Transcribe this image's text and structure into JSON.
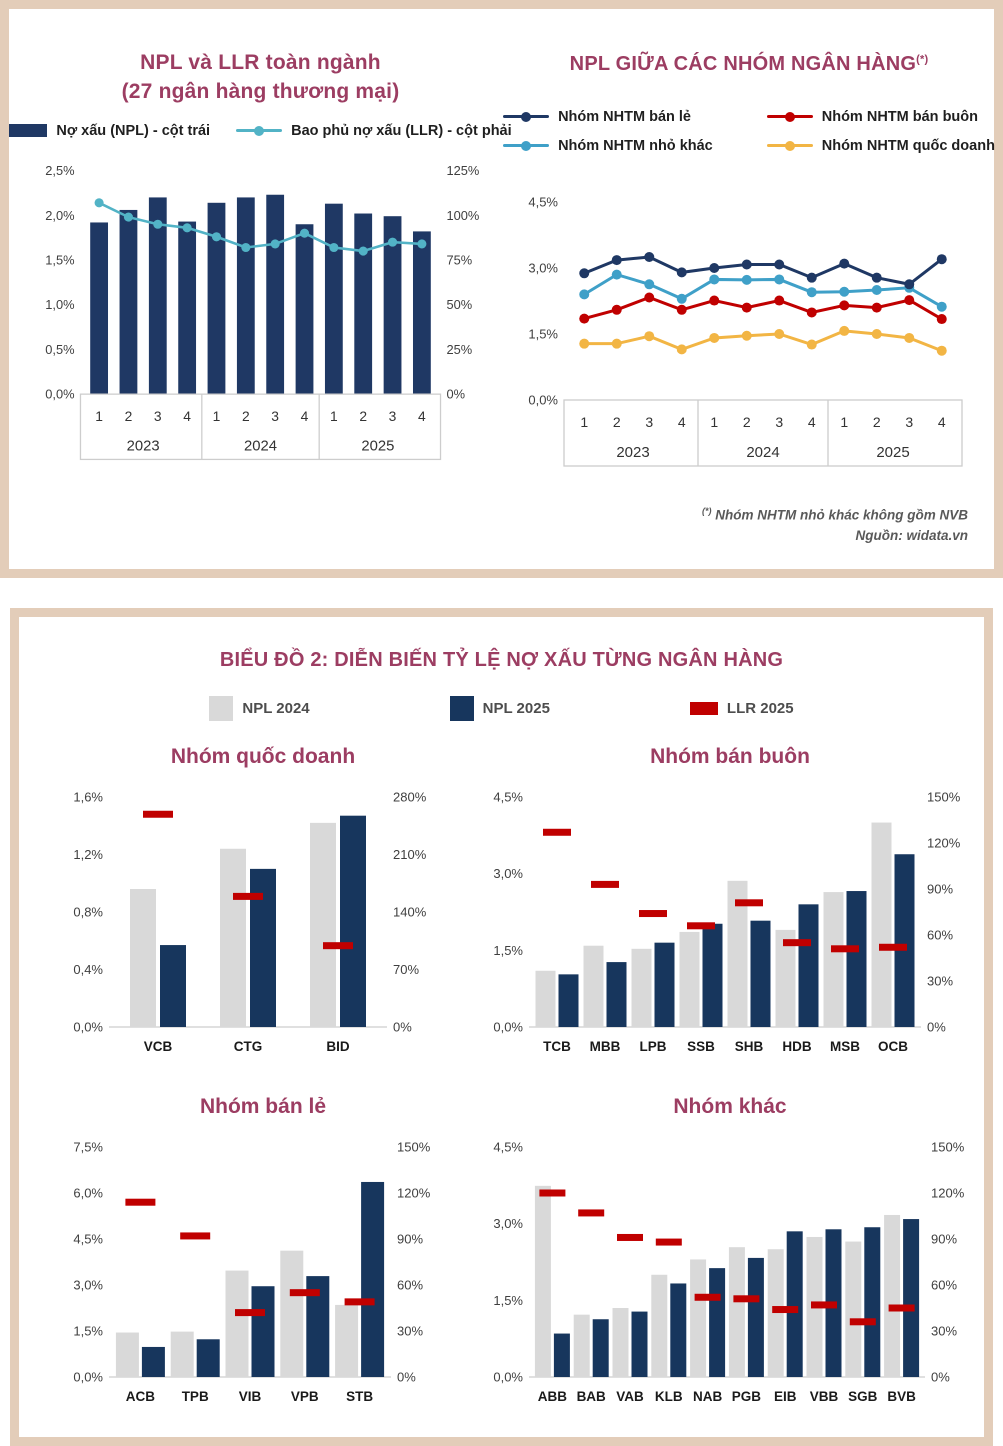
{
  "colors": {
    "maroon_title": "#9C3D62",
    "navy": "#1F3864",
    "navy_dark": "#17365D",
    "teal": "#52B3C6",
    "light_blue": "#3FA0C8",
    "red": "#C00000",
    "yellow": "#F2B544",
    "gray_bar": "#D9D9D9",
    "panel_border": "#E3CDB9",
    "axis_text": "#3F3F3F",
    "axis_line": "#CDCDCD"
  },
  "panel_top": {
    "chart_industry": {
      "title_line1": "NPL và LLR toàn ngành",
      "title_line2": "(27 ngân hàng thương mại)",
      "legend": [
        {
          "label": "Nợ xấu (NPL) - cột trái",
          "color": "#1F3864",
          "marker": "bar"
        },
        {
          "label": "Bao phủ nợ xấu (LLR) - cột phải",
          "color": "#52B3C6",
          "marker": "line"
        }
      ]
    },
    "chart_groups": {
      "title": "NPL GIỮA CÁC NHÓM NGÂN HÀNG",
      "title_sup": "(*)",
      "legend": [
        {
          "label": "Nhóm NHTM bán lẻ",
          "color": "#1F3864",
          "marker": "line"
        },
        {
          "label": "Nhóm NHTM bán buôn",
          "color": "#C00000",
          "marker": "line"
        },
        {
          "label": "Nhóm NHTM nhỏ khác",
          "color": "#3FA0C8",
          "marker": "line"
        },
        {
          "label": "Nhóm NHTM quốc doanh",
          "color": "#F2B544",
          "marker": "line"
        }
      ]
    },
    "footnote_marker": "(*)",
    "footnote_text": " Nhóm NHTM nhỏ khác không gồm NVB",
    "source": "Nguồn: widata.vn"
  },
  "panel_bottom": {
    "title": "BIỂU ĐỒ 2: DIỄN BIẾN TỶ LỆ NỢ XẤU TỪNG NGÂN HÀNG",
    "legend": [
      {
        "label": "NPL 2024",
        "color": "#D9D9D9",
        "marker": "vbar"
      },
      {
        "label": "NPL 2025",
        "color": "#17365D",
        "marker": "vbar"
      },
      {
        "label": "LLR 2025",
        "color": "#C00000",
        "marker": "dash"
      }
    ]
  },
  "chart_data": [
    {
      "id": "industry",
      "type": "combo",
      "title": "NPL và LLR toàn ngành (27 ngân hàng thương mại)",
      "x_groups": [
        {
          "year": "2023",
          "quarters": [
            "1",
            "2",
            "3",
            "4"
          ]
        },
        {
          "year": "2024",
          "quarters": [
            "1",
            "2",
            "3",
            "4"
          ]
        },
        {
          "year": "2025",
          "quarters": [
            "1",
            "2",
            "3",
            "4"
          ]
        }
      ],
      "bar_series": {
        "name": "Nợ xấu (NPL) - cột trái",
        "axis": "left",
        "color": "#1F3864",
        "values": [
          1.92,
          2.06,
          2.2,
          1.93,
          2.14,
          2.2,
          2.23,
          1.9,
          2.13,
          2.02,
          1.99,
          1.82
        ]
      },
      "line_series": {
        "name": "Bao phủ nợ xấu (LLR) - cột phải",
        "axis": "right",
        "color": "#52B3C6",
        "values": [
          107,
          99,
          95,
          93,
          88,
          82,
          84,
          90,
          82,
          80,
          85,
          84
        ]
      },
      "left_axis": {
        "max": 2.5,
        "ticks": [
          {
            "v": 0,
            "label": "0,0%"
          },
          {
            "v": 0.5,
            "label": "0,5%"
          },
          {
            "v": 1,
            "label": "1,0%"
          },
          {
            "v": 1.5,
            "label": "1,5%"
          },
          {
            "v": 2,
            "label": "2,0%"
          },
          {
            "v": 2.5,
            "label": "2,5%"
          }
        ]
      },
      "right_axis": {
        "max": 125,
        "ticks": [
          {
            "v": 0,
            "label": "0%"
          },
          {
            "v": 25,
            "label": "25%"
          },
          {
            "v": 50,
            "label": "50%"
          },
          {
            "v": 75,
            "label": "75%"
          },
          {
            "v": 100,
            "label": "100%"
          },
          {
            "v": 125,
            "label": "125%"
          }
        ]
      }
    },
    {
      "id": "groups",
      "type": "line",
      "title": "NPL GIỮA CÁC NHÓM NGÂN HÀNG (*)",
      "x_groups": [
        {
          "year": "2023",
          "quarters": [
            "1",
            "2",
            "3",
            "4"
          ]
        },
        {
          "year": "2024",
          "quarters": [
            "1",
            "2",
            "3",
            "4"
          ]
        },
        {
          "year": "2025",
          "quarters": [
            "1",
            "2",
            "3",
            "4"
          ]
        }
      ],
      "series": [
        {
          "name": "Nhóm NHTM bán lẻ",
          "color": "#1F3864",
          "values": [
            2.88,
            3.18,
            3.25,
            2.9,
            3.0,
            3.08,
            3.08,
            2.78,
            3.1,
            2.78,
            2.63,
            3.2
          ]
        },
        {
          "name": "Nhóm NHTM bán buôn",
          "color": "#C00000",
          "values": [
            1.85,
            2.05,
            2.33,
            2.05,
            2.26,
            2.1,
            2.26,
            1.99,
            2.15,
            2.1,
            2.27,
            1.84
          ]
        },
        {
          "name": "Nhóm NHTM nhỏ khác",
          "color": "#3FA0C8",
          "values": [
            2.4,
            2.85,
            2.63,
            2.3,
            2.74,
            2.73,
            2.74,
            2.45,
            2.46,
            2.5,
            2.55,
            2.12
          ]
        },
        {
          "name": "Nhóm NHTM quốc doanh",
          "color": "#F2B544",
          "values": [
            1.28,
            1.28,
            1.45,
            1.15,
            1.41,
            1.46,
            1.5,
            1.26,
            1.57,
            1.5,
            1.41,
            1.12
          ]
        }
      ],
      "left_axis": {
        "max": 4.5,
        "ticks": [
          {
            "v": 0,
            "label": "0,0%"
          },
          {
            "v": 1.5,
            "label": "1,5%"
          },
          {
            "v": 3,
            "label": "3,0%"
          },
          {
            "v": 4.5,
            "label": "4,5%"
          }
        ]
      }
    },
    {
      "id": "quoc-doanh",
      "type": "grouped-bar",
      "title": "Nhóm quốc doanh",
      "categories": [
        "VCB",
        "CTG",
        "BID"
      ],
      "series": [
        {
          "name": "NPL 2024",
          "axis": "left",
          "color": "#D9D9D9",
          "values": [
            0.96,
            1.24,
            1.42
          ]
        },
        {
          "name": "NPL 2025",
          "axis": "left",
          "color": "#17365D",
          "values": [
            0.57,
            1.1,
            1.47
          ]
        },
        {
          "name": "LLR 2025",
          "axis": "right",
          "color": "#C00000",
          "style": "dash",
          "values": [
            259,
            159,
            99
          ]
        }
      ],
      "left_axis": {
        "max": 1.6,
        "ticks": [
          {
            "v": 0,
            "label": "0,0%"
          },
          {
            "v": 0.4,
            "label": "0,4%"
          },
          {
            "v": 0.8,
            "label": "0,8%"
          },
          {
            "v": 1.2,
            "label": "1,2%"
          },
          {
            "v": 1.6,
            "label": "1,6%"
          }
        ]
      },
      "right_axis": {
        "max": 280,
        "ticks": [
          {
            "v": 0,
            "label": "0%"
          },
          {
            "v": 70,
            "label": "70%"
          },
          {
            "v": 140,
            "label": "140%"
          },
          {
            "v": 210,
            "label": "210%"
          },
          {
            "v": 280,
            "label": "280%"
          }
        ]
      }
    },
    {
      "id": "ban-buon",
      "type": "grouped-bar",
      "title": "Nhóm bán buôn",
      "categories": [
        "TCB",
        "MBB",
        "LPB",
        "SSB",
        "SHB",
        "HDB",
        "MSB",
        "OCB"
      ],
      "series": [
        {
          "name": "NPL 2024",
          "axis": "left",
          "color": "#D9D9D9",
          "values": [
            1.1,
            1.59,
            1.53,
            1.86,
            2.86,
            1.9,
            2.64,
            4.0
          ]
        },
        {
          "name": "NPL 2025",
          "axis": "left",
          "color": "#17365D",
          "values": [
            1.03,
            1.27,
            1.65,
            2.02,
            2.08,
            2.4,
            2.66,
            3.38
          ]
        },
        {
          "name": "LLR 2025",
          "axis": "right",
          "color": "#C00000",
          "style": "dash",
          "values": [
            127,
            93,
            74,
            66,
            81,
            55,
            51,
            52
          ]
        }
      ],
      "left_axis": {
        "max": 4.5,
        "ticks": [
          {
            "v": 0,
            "label": "0,0%"
          },
          {
            "v": 1.5,
            "label": "1,5%"
          },
          {
            "v": 3,
            "label": "3,0%"
          },
          {
            "v": 4.5,
            "label": "4,5%"
          }
        ]
      },
      "right_axis": {
        "max": 150,
        "ticks": [
          {
            "v": 0,
            "label": "0%"
          },
          {
            "v": 30,
            "label": "30%"
          },
          {
            "v": 60,
            "label": "60%"
          },
          {
            "v": 90,
            "label": "90%"
          },
          {
            "v": 120,
            "label": "120%"
          },
          {
            "v": 150,
            "label": "150%"
          }
        ]
      }
    },
    {
      "id": "ban-le",
      "type": "grouped-bar",
      "title": "Nhóm bán lẻ",
      "categories": [
        "ACB",
        "TPB",
        "VIB",
        "VPB",
        "STB"
      ],
      "series": [
        {
          "name": "NPL 2024",
          "axis": "left",
          "color": "#D9D9D9",
          "values": [
            1.45,
            1.48,
            3.47,
            4.12,
            2.35
          ]
        },
        {
          "name": "NPL 2025",
          "axis": "left",
          "color": "#17365D",
          "values": [
            0.98,
            1.23,
            2.96,
            3.29,
            6.36
          ]
        },
        {
          "name": "LLR 2025",
          "axis": "right",
          "color": "#C00000",
          "style": "dash",
          "values": [
            114,
            92,
            42,
            55,
            49
          ]
        }
      ],
      "left_axis": {
        "max": 7.5,
        "ticks": [
          {
            "v": 0,
            "label": "0,0%"
          },
          {
            "v": 1.5,
            "label": "1,5%"
          },
          {
            "v": 3,
            "label": "3,0%"
          },
          {
            "v": 4.5,
            "label": "4,5%"
          },
          {
            "v": 6,
            "label": "6,0%"
          },
          {
            "v": 7.5,
            "label": "7,5%"
          }
        ]
      },
      "right_axis": {
        "max": 150,
        "ticks": [
          {
            "v": 0,
            "label": "0%"
          },
          {
            "v": 30,
            "label": "30%"
          },
          {
            "v": 60,
            "label": "60%"
          },
          {
            "v": 90,
            "label": "90%"
          },
          {
            "v": 120,
            "label": "120%"
          },
          {
            "v": 150,
            "label": "150%"
          }
        ]
      }
    },
    {
      "id": "khac",
      "type": "grouped-bar",
      "title": "Nhóm khác",
      "categories": [
        "ABB",
        "BAB",
        "VAB",
        "KLB",
        "NAB",
        "PGB",
        "EIB",
        "VBB",
        "SGB",
        "BVB"
      ],
      "series": [
        {
          "name": "NPL 2024",
          "axis": "left",
          "color": "#D9D9D9",
          "values": [
            3.74,
            1.22,
            1.35,
            2.0,
            2.3,
            2.54,
            2.5,
            2.74,
            2.65,
            3.17
          ]
        },
        {
          "name": "NPL 2025",
          "axis": "left",
          "color": "#17365D",
          "values": [
            0.85,
            1.13,
            1.28,
            1.83,
            2.13,
            2.33,
            2.85,
            2.89,
            2.93,
            3.09
          ]
        },
        {
          "name": "LLR 2025",
          "axis": "right",
          "color": "#C00000",
          "style": "dash",
          "values": [
            120,
            107,
            91,
            88,
            52,
            51,
            44,
            47,
            36,
            45
          ]
        }
      ],
      "left_axis": {
        "max": 4.5,
        "ticks": [
          {
            "v": 0,
            "label": "0,0%"
          },
          {
            "v": 1.5,
            "label": "1,5%"
          },
          {
            "v": 3,
            "label": "3,0%"
          },
          {
            "v": 4.5,
            "label": "4,5%"
          }
        ]
      },
      "right_axis": {
        "max": 150,
        "ticks": [
          {
            "v": 0,
            "label": "0%"
          },
          {
            "v": 30,
            "label": "30%"
          },
          {
            "v": 60,
            "label": "60%"
          },
          {
            "v": 90,
            "label": "90%"
          },
          {
            "v": 120,
            "label": "120%"
          },
          {
            "v": 150,
            "label": "150%"
          }
        ]
      }
    }
  ]
}
